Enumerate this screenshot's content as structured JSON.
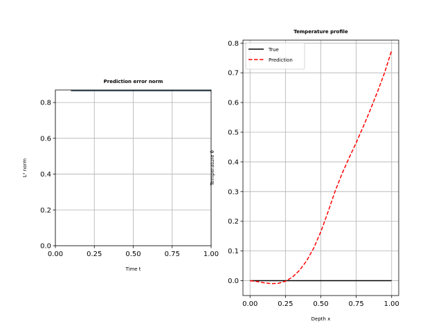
{
  "chart_data": [
    {
      "type": "line",
      "title": "Prediction error norm",
      "xlabel": "Time t",
      "ylabel": "L² norm",
      "xlim": [
        0.0,
        1.0
      ],
      "ylim": [
        0.0,
        0.87
      ],
      "xticks": [
        "0.00",
        "0.25",
        "0.50",
        "0.75",
        "1.00"
      ],
      "yticks": [
        "0.0",
        "0.2",
        "0.4",
        "0.6",
        "0.8"
      ],
      "grid": true,
      "series": [
        {
          "color": "#1f3b4d",
          "x": [
            0.1,
            0.2,
            0.3,
            0.4,
            0.5,
            0.6,
            0.7,
            0.8,
            0.9,
            1.0
          ],
          "y": [
            0.866,
            0.866,
            0.866,
            0.866,
            0.866,
            0.866,
            0.866,
            0.866,
            0.866,
            0.866
          ]
        }
      ]
    },
    {
      "type": "line",
      "title": "Temperature profile",
      "xlabel": "Depth x",
      "ylabel": "Temperature θ",
      "xlim": [
        -0.05,
        1.05
      ],
      "ylim": [
        -0.05,
        0.81
      ],
      "xticks": [
        "0.00",
        "0.25",
        "0.50",
        "0.75",
        "1.00"
      ],
      "yticks": [
        "0.0",
        "0.1",
        "0.2",
        "0.3",
        "0.4",
        "0.5",
        "0.6",
        "0.7",
        "0.8"
      ],
      "grid": true,
      "legend_position": "top-left",
      "series": [
        {
          "name": "True",
          "color": "#000000",
          "style": "solid",
          "x": [
            0.0,
            0.25,
            0.5,
            0.75,
            1.0
          ],
          "y": [
            0.0,
            0.0,
            0.0,
            0.0,
            0.0
          ]
        },
        {
          "name": "Prediction",
          "color": "#ff0000",
          "style": "dashed",
          "x": [
            0.0,
            0.05,
            0.1,
            0.15,
            0.2,
            0.25,
            0.3,
            0.35,
            0.4,
            0.45,
            0.5,
            0.55,
            0.6,
            0.65,
            0.7,
            0.75,
            0.8,
            0.85,
            0.9,
            0.95,
            1.0
          ],
          "y": [
            0.0,
            -0.0029,
            -0.0072,
            -0.0099,
            -0.0088,
            -0.002,
            0.0124,
            0.0351,
            0.0672,
            0.1101,
            0.165,
            0.2305,
            0.3,
            0.3605,
            0.414,
            0.465,
            0.519,
            0.576,
            0.636,
            0.7,
            0.775
          ]
        }
      ]
    }
  ]
}
